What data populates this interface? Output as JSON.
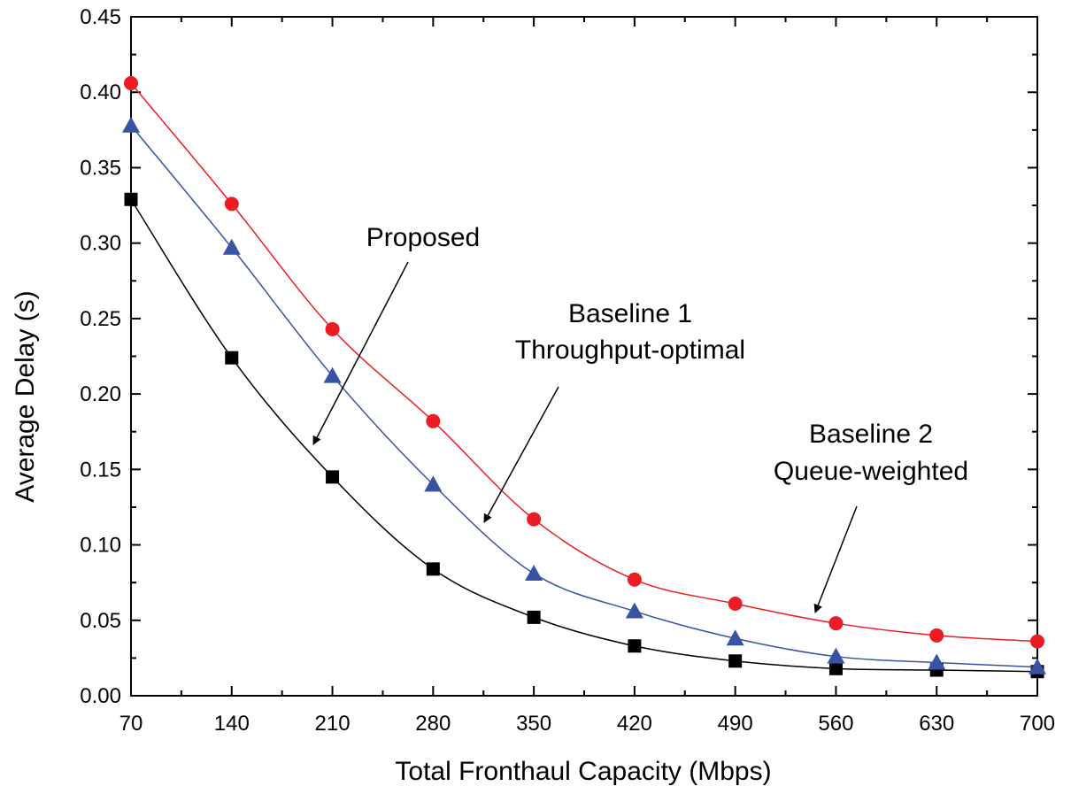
{
  "chart_data": {
    "type": "line",
    "title": "",
    "xlabel": "Total Fronthaul Capacity (Mbps)",
    "ylabel": "Average Delay (s)",
    "xlim": [
      70,
      700
    ],
    "ylim": [
      0.0,
      0.45
    ],
    "x_ticks": [
      70,
      140,
      210,
      280,
      350,
      420,
      490,
      560,
      630,
      700
    ],
    "x_tick_labels": [
      "70",
      "140",
      "210",
      "280",
      "350",
      "420",
      "490",
      "560",
      "630",
      "700"
    ],
    "y_ticks": [
      0.0,
      0.05,
      0.1,
      0.15,
      0.2,
      0.25,
      0.3,
      0.35,
      0.4,
      0.45
    ],
    "y_tick_labels": [
      "0.00",
      "0.05",
      "0.10",
      "0.15",
      "0.20",
      "0.25",
      "0.30",
      "0.35",
      "0.40",
      "0.45"
    ],
    "grid": false,
    "legend": "none",
    "x": [
      70,
      140,
      210,
      280,
      350,
      420,
      490,
      560,
      630,
      700
    ],
    "series": [
      {
        "key": "proposed",
        "marker": "square",
        "color": "#000000",
        "values": [
          0.329,
          0.224,
          0.145,
          0.084,
          0.052,
          0.033,
          0.023,
          0.018,
          0.017,
          0.016
        ]
      },
      {
        "key": "baseline1",
        "marker": "triangle",
        "color": "#3953a4",
        "values": [
          0.378,
          0.297,
          0.212,
          0.14,
          0.081,
          0.056,
          0.038,
          0.026,
          0.022,
          0.019
        ]
      },
      {
        "key": "baseline2",
        "marker": "circle",
        "color": "#ed1c24",
        "values": [
          0.406,
          0.326,
          0.243,
          0.182,
          0.117,
          0.077,
          0.061,
          0.048,
          0.04,
          0.036
        ]
      }
    ],
    "annotations": [
      {
        "key": "proposed",
        "lines": [
          "Proposed"
        ]
      },
      {
        "key": "baseline1",
        "lines": [
          "Baseline 1",
          "Throughput-optimal"
        ]
      },
      {
        "key": "baseline2",
        "lines": [
          "Baseline 2",
          "Queue-weighted"
        ]
      }
    ]
  }
}
